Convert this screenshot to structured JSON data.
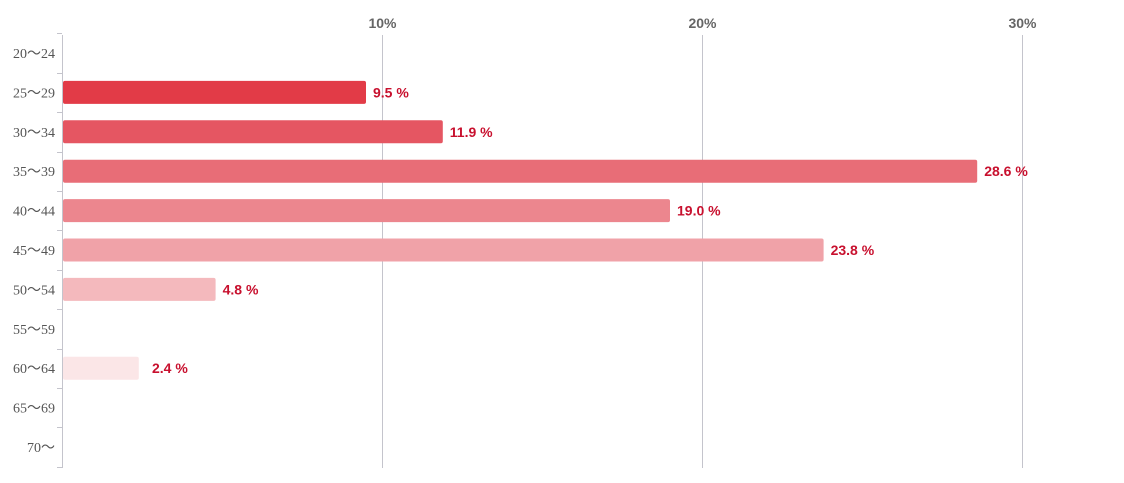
{
  "chart_data": {
    "type": "bar",
    "orientation": "horizontal",
    "title": "",
    "xlabel": "",
    "ylabel": "",
    "xlim": [
      0,
      33
    ],
    "x_ticks": [
      10,
      20,
      30
    ],
    "x_tick_labels": [
      "10%",
      "20%",
      "30%"
    ],
    "grid": true,
    "categories": [
      "20〜24",
      "25〜29",
      "30〜34",
      "35〜39",
      "40〜44",
      "45〜49",
      "50〜54",
      "55〜59",
      "60〜64",
      "65〜69",
      "70〜"
    ],
    "values": [
      null,
      9.5,
      11.9,
      28.6,
      19.0,
      23.8,
      4.8,
      null,
      2.4,
      null,
      null
    ],
    "data_labels": [
      "",
      "9.5 %",
      "11.9 %",
      "28.6 %",
      "19.0 %",
      "23.8 %",
      "4.8 %",
      "",
      "2.4 %",
      "",
      ""
    ],
    "bar_colors": [
      "#e23b47",
      "#e23b47",
      "#e55662",
      "#e86d77",
      "#ec868e",
      "#f0a2a8",
      "#f4b9bd",
      "#f7cfd2",
      "#fbe6e7",
      "#fbe6e7",
      "#fbe6e7"
    ],
    "label_color": "#c8102e",
    "axis_color": "#c4c4cc",
    "grid_color": "#c4c4cc"
  }
}
